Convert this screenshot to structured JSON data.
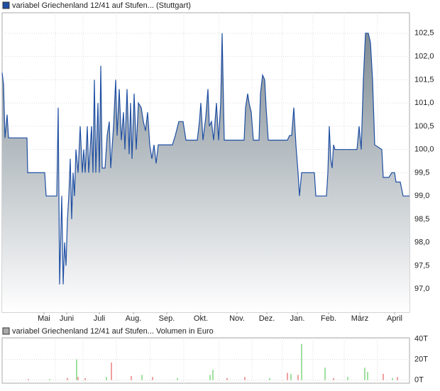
{
  "chart_data": [
    {
      "type": "area",
      "legend": "variabel Griechenland 12/41 auf Stufen... (Stuttgart)",
      "color": "#1f4fa3",
      "fill": "#7f8c95",
      "x": [
        0,
        2,
        4,
        7,
        9,
        35,
        36,
        60,
        62,
        77,
        79,
        81,
        84,
        86,
        88,
        90,
        92,
        94,
        96,
        98,
        100,
        102,
        104,
        107,
        110,
        113,
        115,
        117,
        120,
        122,
        126,
        128,
        130,
        132,
        135,
        137,
        139,
        141,
        145,
        148,
        151,
        153,
        157,
        160,
        162,
        165,
        168,
        171,
        173,
        176,
        179,
        181,
        183,
        186,
        189,
        192,
        196,
        199,
        202,
        205,
        208,
        211,
        214,
        217,
        220,
        237,
        240,
        244,
        249,
        255,
        259,
        275,
        278,
        280,
        283,
        287,
        290,
        292,
        295,
        298,
        300,
        302,
        305,
        308,
        310,
        313,
        341,
        343,
        346,
        348,
        351,
        354,
        362,
        364,
        367,
        370,
        372,
        375,
        402,
        405,
        408,
        411,
        414,
        417,
        419,
        422,
        440,
        442,
        457,
        459,
        461,
        463,
        465,
        467,
        469,
        500,
        503,
        506,
        509,
        512,
        516,
        519,
        522,
        525,
        535,
        537,
        545,
        549,
        553,
        555,
        561,
        565,
        574
      ],
      "values": [
        101.65,
        101.4,
        100.25,
        100.75,
        100.25,
        100.25,
        99.5,
        99.5,
        99.0,
        99.0,
        100.9,
        97.1,
        99.0,
        97.1,
        98.0,
        97.5,
        98.5,
        99.0,
        99.8,
        98.5,
        99.5,
        99.0,
        100.0,
        99.5,
        100.5,
        99.5,
        100.0,
        99.5,
        100.5,
        99.5,
        100.5,
        99.5,
        101.5,
        99.5,
        101.0,
        99.5,
        101.8,
        99.6,
        99.6,
        100.3,
        100.6,
        99.6,
        100.5,
        101.5,
        100.3,
        101.3,
        100.2,
        100.8,
        100.0,
        101.3,
        99.9,
        101.0,
        99.8,
        101.2,
        100.0,
        101.0,
        100.9,
        100.6,
        100.4,
        100.8,
        100.1,
        99.8,
        100.1,
        99.7,
        100.1,
        100.1,
        100.1,
        100.3,
        100.6,
        100.6,
        100.2,
        100.2,
        100.6,
        101.0,
        100.2,
        100.7,
        101.3,
        100.5,
        100.6,
        100.2,
        100.6,
        101.0,
        100.2,
        101.0,
        102.5,
        100.2,
        100.2,
        100.9,
        101.2,
        101.0,
        100.8,
        100.2,
        100.2,
        101.2,
        101.6,
        101.5,
        100.9,
        100.2,
        100.2,
        100.3,
        100.3,
        100.9,
        100.1,
        99.5,
        99.0,
        99.5,
        99.5,
        99.0,
        99.0,
        99.5,
        100.5,
        99.8,
        99.6,
        100.1,
        100.0,
        100.0,
        100.5,
        100.0,
        101.5,
        102.5,
        102.5,
        102.3,
        101.5,
        100.1,
        100.0,
        99.4,
        99.4,
        99.5,
        99.5,
        99.3,
        99.3,
        99.0,
        99.0
      ],
      "xlim": [
        0,
        574
      ],
      "ylim": [
        96.5,
        102.94
      ],
      "xticks": [
        {
          "value": 59,
          "label": "Mai"
        },
        {
          "value": 91,
          "label": "Juni"
        },
        {
          "value": 137,
          "label": "Juli"
        },
        {
          "value": 185,
          "label": "Aug."
        },
        {
          "value": 232,
          "label": "Sep."
        },
        {
          "value": 280,
          "label": "Okt."
        },
        {
          "value": 331,
          "label": "Nov."
        },
        {
          "value": 373,
          "label": "Dez."
        },
        {
          "value": 416,
          "label": "Jan."
        },
        {
          "value": 460,
          "label": "Feb."
        },
        {
          "value": 504,
          "label": "März"
        },
        {
          "value": 553,
          "label": "April"
        }
      ],
      "yticks": [
        {
          "value": 97,
          "label": "97,0"
        },
        {
          "value": 97.5,
          "label": "97,5"
        },
        {
          "value": 98,
          "label": "98,0"
        },
        {
          "value": 98.5,
          "label": "98,5"
        },
        {
          "value": 99,
          "label": "99,0"
        },
        {
          "value": 99.5,
          "label": "99,5"
        },
        {
          "value": 100,
          "label": "100,0"
        },
        {
          "value": 100.5,
          "label": "100,5"
        },
        {
          "value": 101,
          "label": "101,0"
        },
        {
          "value": 101.5,
          "label": "101,5"
        },
        {
          "value": 102,
          "label": "102,0"
        },
        {
          "value": 102.5,
          "label": "102,5"
        }
      ],
      "grid": true
    },
    {
      "type": "volume",
      "legend": "variabel Griechenland 12/41 auf Stufen... Volumen in Euro",
      "legend_color": "#aaaaaa",
      "x": [
        37,
        67,
        92,
        105,
        107,
        117,
        147,
        154,
        182,
        197,
        212,
        247,
        293,
        297,
        317,
        342,
        377,
        402,
        407,
        417,
        422,
        455,
        467,
        487,
        511,
        515,
        537,
        550,
        557
      ],
      "values": [
        1,
        1,
        2,
        20,
        3,
        2,
        3,
        17,
        4,
        5,
        3,
        2,
        5,
        10,
        2,
        3,
        2,
        7,
        6,
        5,
        35,
        12,
        2,
        3,
        12,
        8,
        6,
        2,
        3
      ],
      "colors": [
        "#e04040",
        "#40c040",
        "#e04040",
        "#40c040",
        "#e04040",
        "#e04040",
        "#40c040",
        "#e04040",
        "#e04040",
        "#40c040",
        "#e04040",
        "#40c040",
        "#40c040",
        "#40c040",
        "#e04040",
        "#e04040",
        "#40c040",
        "#e04040",
        "#40c040",
        "#e04040",
        "#40c040",
        "#40c040",
        "#e04040",
        "#40c040",
        "#40c040",
        "#40c040",
        "#e04040",
        "#40c040",
        "#e04040"
      ],
      "xlim": [
        0,
        574
      ],
      "ylim": [
        -3,
        41
      ],
      "yticks": [
        {
          "value": 0,
          "label": "0T"
        },
        {
          "value": 20,
          "label": "20T"
        },
        {
          "value": 40,
          "label": "40T"
        }
      ],
      "grid": true
    }
  ]
}
